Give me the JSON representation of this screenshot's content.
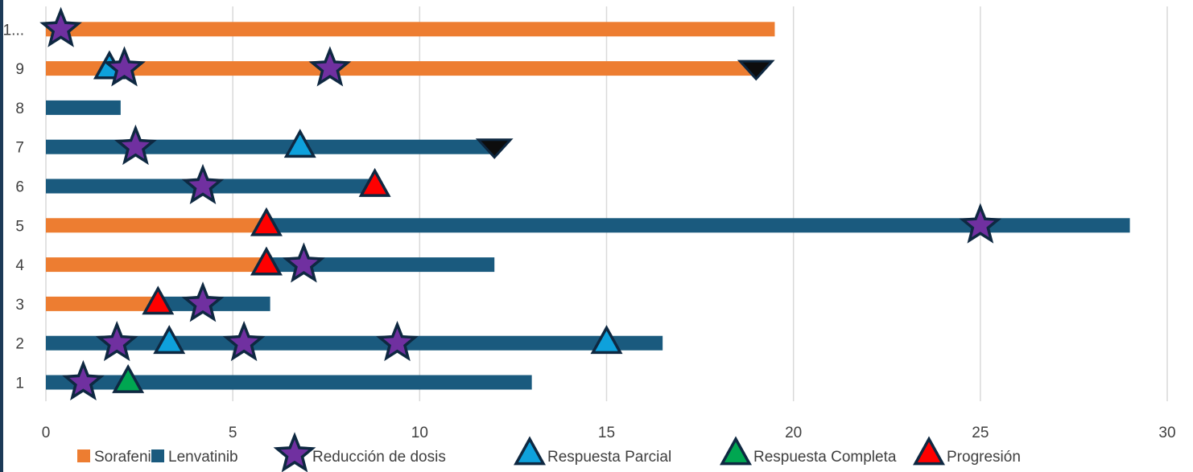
{
  "chart_data": {
    "type": "bar",
    "orientation": "horizontal",
    "stacked": true,
    "categories": [
      "1",
      "2",
      "3",
      "4",
      "5",
      "6",
      "7",
      "8",
      "9",
      "1..."
    ],
    "xlim": [
      0,
      30
    ],
    "x_ticks": [
      "0",
      "5",
      "10",
      "15",
      "20",
      "25",
      "30"
    ],
    "grid": true,
    "legend_position": "bottom",
    "colors": {
      "sorafenib": "#ed7d31",
      "lenvatinib": "#1a5a7e",
      "reduccion": "#7030a0",
      "parcial": "#0ea1dc",
      "completa": "#00a651",
      "progresion": "#ff0000",
      "end": "#0d0d0d",
      "grid": "#d9d9d9",
      "outline": "#0e2841"
    },
    "legend": [
      {
        "label": "Sorafenib",
        "kind": "bar",
        "color": "#ed7d31"
      },
      {
        "label": "Lenvatinib",
        "kind": "bar",
        "color": "#1a5a7e"
      },
      {
        "label": "Reducción de dosis",
        "kind": "star",
        "color": "#7030a0"
      },
      {
        "label": "Respuesta Parcial",
        "kind": "triangle",
        "color": "#0ea1dc"
      },
      {
        "label": "Respuesta Completa",
        "kind": "triangle",
        "color": "#00a651"
      },
      {
        "label": "Progresión",
        "kind": "triangle",
        "color": "#ff0000"
      }
    ],
    "patients": [
      {
        "label": "1",
        "segments": [
          {
            "drug": "Lenvatinib",
            "from": 0,
            "to": 13
          }
        ],
        "markers": [
          {
            "type": "reduccion",
            "x": 1.0
          },
          {
            "type": "completa",
            "x": 2.2
          }
        ]
      },
      {
        "label": "2",
        "segments": [
          {
            "drug": "Lenvatinib",
            "from": 0,
            "to": 16.5
          }
        ],
        "markers": [
          {
            "type": "reduccion",
            "x": 1.9
          },
          {
            "type": "parcial",
            "x": 3.3
          },
          {
            "type": "reduccion",
            "x": 5.3
          },
          {
            "type": "reduccion",
            "x": 9.4
          },
          {
            "type": "parcial",
            "x": 15.0
          }
        ]
      },
      {
        "label": "3",
        "segments": [
          {
            "drug": "Sorafenib",
            "from": 0,
            "to": 3.0
          },
          {
            "drug": "Lenvatinib",
            "from": 3.0,
            "to": 6.0
          }
        ],
        "markers": [
          {
            "type": "progresion",
            "x": 3.0
          },
          {
            "type": "reduccion",
            "x": 4.2
          }
        ]
      },
      {
        "label": "4",
        "segments": [
          {
            "drug": "Sorafenib",
            "from": 0,
            "to": 6.0
          },
          {
            "drug": "Lenvatinib",
            "from": 6.0,
            "to": 12.0
          }
        ],
        "markers": [
          {
            "type": "progresion",
            "x": 5.9
          },
          {
            "type": "reduccion",
            "x": 6.9
          }
        ]
      },
      {
        "label": "5",
        "segments": [
          {
            "drug": "Sorafenib",
            "from": 0,
            "to": 6.0
          },
          {
            "drug": "Lenvatinib",
            "from": 6.0,
            "to": 29.0
          }
        ],
        "markers": [
          {
            "type": "progresion",
            "x": 5.9
          },
          {
            "type": "reduccion",
            "x": 25.0
          }
        ]
      },
      {
        "label": "6",
        "segments": [
          {
            "drug": "Lenvatinib",
            "from": 0,
            "to": 8.8
          }
        ],
        "markers": [
          {
            "type": "reduccion",
            "x": 4.2
          },
          {
            "type": "progresion",
            "x": 8.8
          }
        ]
      },
      {
        "label": "7",
        "segments": [
          {
            "drug": "Lenvatinib",
            "from": 0,
            "to": 12.0
          }
        ],
        "markers": [
          {
            "type": "reduccion",
            "x": 2.4
          },
          {
            "type": "parcial",
            "x": 6.8
          },
          {
            "type": "end",
            "x": 12.0
          }
        ]
      },
      {
        "label": "8",
        "segments": [
          {
            "drug": "Lenvatinib",
            "from": 0,
            "to": 2.0
          }
        ],
        "markers": []
      },
      {
        "label": "9",
        "segments": [
          {
            "drug": "Sorafenib",
            "from": 0,
            "to": 19.0
          }
        ],
        "markers": [
          {
            "type": "parcial",
            "x": 1.7
          },
          {
            "type": "reduccion",
            "x": 2.1
          },
          {
            "type": "reduccion",
            "x": 7.6
          },
          {
            "type": "end",
            "x": 19.0
          }
        ]
      },
      {
        "label": "1...",
        "segments": [
          {
            "drug": "Sorafenib",
            "from": 0,
            "to": 19.5
          }
        ],
        "markers": [
          {
            "type": "reduccion",
            "x": 0.4
          }
        ]
      }
    ]
  }
}
